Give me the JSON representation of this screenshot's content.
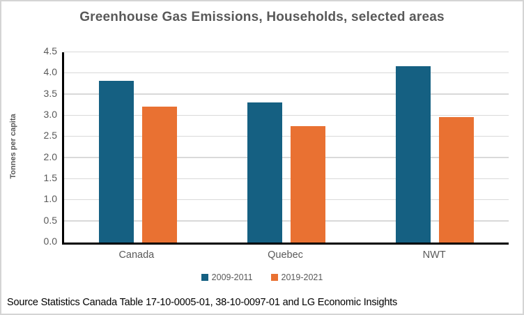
{
  "title": "Greenhouse Gas Emissions, Households, selected areas",
  "source_note": "Source Statistics Canada Table 17-10-0005-01, 38-10-0097-01 and LG Economic Insights",
  "colors": {
    "series_2009_2011": "#156082",
    "series_2019_2021": "#E97132",
    "gridline": "#D9D9D9",
    "axis_line": "#000000",
    "label_text": "#595959",
    "frame_border": "#D4D4D4"
  },
  "chart_data": {
    "type": "bar",
    "title": "Greenhouse Gas Emissions, Households, selected areas",
    "categories": [
      "Canada",
      "Quebec",
      "NWT"
    ],
    "series": [
      {
        "name": "2009-2011",
        "color": "#156082",
        "values": [
          3.82,
          3.31,
          4.17
        ]
      },
      {
        "name": "2019-2021",
        "color": "#E97132",
        "values": [
          3.21,
          2.75,
          2.97
        ]
      }
    ],
    "xlabel": "",
    "ylabel": "Tonnes per capita",
    "ylim": [
      0,
      4.5
    ],
    "ytick_step": 0.5,
    "yticks": [
      "0.0",
      "0.5",
      "1.0",
      "1.5",
      "2.0",
      "2.5",
      "3.0",
      "3.5",
      "4.0",
      "4.5"
    ],
    "grid": true,
    "legend_position": "bottom"
  }
}
